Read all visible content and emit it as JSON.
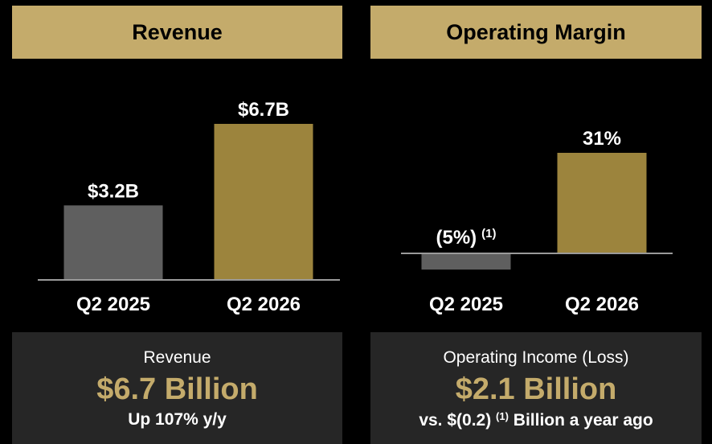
{
  "colors": {
    "gold": "#9c843d",
    "gray": "#5f5f5f",
    "header": "#c4ab6b",
    "axis": "#9a9a9a"
  },
  "revenue": {
    "header": "Revenue",
    "summary": {
      "label": "Revenue",
      "value": "$6.7 Billion",
      "note": "Up 107% y/y"
    }
  },
  "margin": {
    "header": "Operating Margin",
    "summary": {
      "label": "Operating Income (Loss)",
      "value": "$2.1 Billion",
      "note_pre": "vs. $(0.2)",
      "note_sup": "(1)",
      "note_post": "Billion a year ago"
    }
  },
  "chart_data": [
    {
      "type": "bar",
      "categories": [
        "Q2 2025",
        "Q2 2026"
      ],
      "values": [
        3.2,
        6.7
      ],
      "labels": [
        "$3.2B",
        "$6.7B"
      ],
      "unit": "$B",
      "ylim": [
        0,
        6.7
      ]
    },
    {
      "type": "bar",
      "categories": [
        "Q2 2025",
        "Q2 2026"
      ],
      "values": [
        -5,
        31
      ],
      "labels": [
        "(5%)",
        "31%"
      ],
      "footnotes": [
        "(1)",
        ""
      ],
      "unit": "%",
      "ylim": [
        -5,
        31
      ]
    }
  ]
}
